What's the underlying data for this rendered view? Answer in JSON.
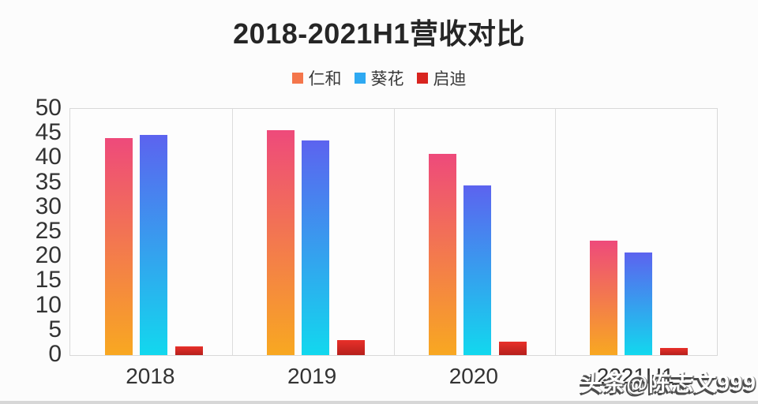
{
  "chart": {
    "title": "2018-2021H1营收对比"
  },
  "watermark": {
    "text": "头条@陈志文999"
  },
  "colors": {
    "plot_border": "#d9d9d9",
    "background": "#fcfcfc",
    "axis_text": "#333333"
  },
  "chart_data": {
    "type": "bar",
    "title": "2018-2021H1营收对比",
    "xlabel": "",
    "ylabel": "",
    "categories": [
      "2018",
      "2019",
      "2020",
      "2021H1"
    ],
    "series": [
      {
        "name": "仁和",
        "values": [
          44.0,
          45.7,
          40.9,
          23.2
        ],
        "colors": [
          "#ee4a7b",
          "#f8a821"
        ],
        "legend_color": "#f4764b"
      },
      {
        "name": "葵花",
        "values": [
          44.7,
          43.6,
          34.5,
          20.9
        ],
        "colors": [
          "#5c63ef",
          "#12d8ee"
        ],
        "legend_color": "#2ea9f2"
      },
      {
        "name": "启迪",
        "values": [
          1.8,
          3.1,
          2.8,
          1.4
        ],
        "colors": [
          "#e8302a",
          "#b6201c"
        ],
        "legend_color": "#d8241f"
      }
    ],
    "ylim": [
      0,
      50
    ],
    "yticks": [
      0,
      5,
      10,
      15,
      20,
      25,
      30,
      35,
      40,
      45,
      50
    ],
    "grid": "vertical-panel-separators-only",
    "legend_position": "top-center"
  }
}
